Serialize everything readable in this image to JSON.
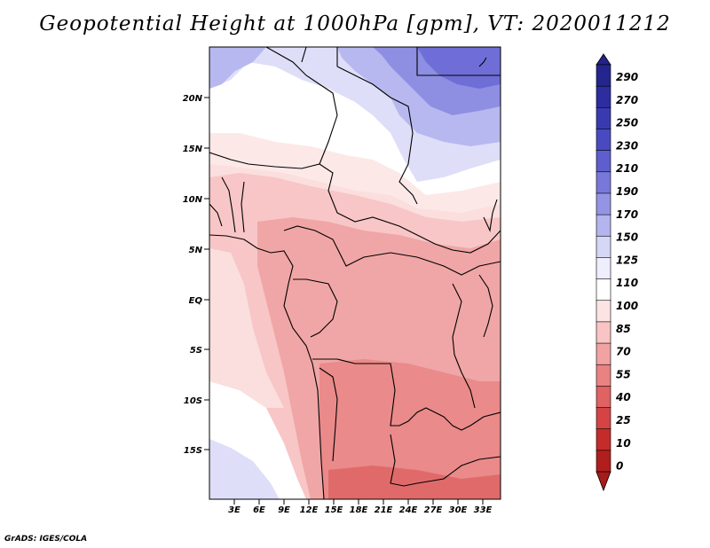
{
  "title": "Geopotential Height at 1000hPa [gpm], VT: 2020011212",
  "credit": "GrADS: IGES/COLA",
  "map": {
    "lat_labels": [
      "20N",
      "15N",
      "10N",
      "5N",
      "EQ",
      "5S",
      "10S",
      "15S"
    ],
    "lon_labels": [
      "3E",
      "6E",
      "9E",
      "12E",
      "15E",
      "18E",
      "21E",
      "24E",
      "27E",
      "30E",
      "33E"
    ]
  },
  "colorbar": {
    "levels": [
      "290",
      "270",
      "250",
      "230",
      "210",
      "190",
      "170",
      "150",
      "125",
      "110",
      "100",
      "85",
      "70",
      "55",
      "40",
      "25",
      "10",
      "0"
    ],
    "colors": {
      "top_arrow": "#23238a",
      "blues": [
        "#25258f",
        "#2d2da0",
        "#3a3ab0",
        "#4a4ac0",
        "#5e5ece",
        "#7878da",
        "#9494e4",
        "#b4b4ee",
        "#d6d6f6",
        "#eeeefc"
      ],
      "white": "#ffffff",
      "reds": [
        "#fde4e4",
        "#f8c4c4",
        "#f2a2a2",
        "#ea8282",
        "#e06262",
        "#d44444",
        "#c42c2c",
        "#b01e1e"
      ],
      "bottom_arrow": "#a81b1b"
    }
  }
}
